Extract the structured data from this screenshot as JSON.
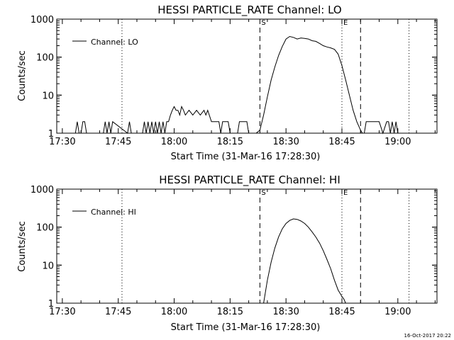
{
  "footer_timestamp": "16-Oct-2017 20:22",
  "chart_data": [
    {
      "type": "line",
      "title": "HESSI PARTICLE_RATE Channel: LO",
      "xlabel": "Start Time (31-Mar-16 17:28:30)",
      "ylabel": "Counts/sec",
      "y_scale": "log",
      "ylim": [
        1,
        1000
      ],
      "xlim": [
        "17:28:30",
        "19:10:30"
      ],
      "x_ticks": [
        "17:30",
        "17:45",
        "18:00",
        "18:15",
        "18:30",
        "18:45",
        "19:00"
      ],
      "y_ticks": [
        "1",
        "10",
        "100",
        "1000"
      ],
      "legend": {
        "label": "Channel: LO",
        "position": "top-left"
      },
      "markers": [
        {
          "time": "17:46",
          "style": "dotted",
          "label": ""
        },
        {
          "time": "18:23",
          "style": "dashed",
          "label": "S"
        },
        {
          "time": "18:45",
          "style": "dotted",
          "label": "E"
        },
        {
          "time": "18:50",
          "style": "dashed",
          "label": ""
        },
        {
          "time": "19:03",
          "style": "dotted",
          "label": ""
        }
      ],
      "series": [
        {
          "x": [
            "17:28:30",
            "17:33:30",
            "17:34:00",
            "17:34:30",
            "17:35:00",
            "17:35:30",
            "17:36:00",
            "17:36:30",
            "17:41:00",
            "17:41:30",
            "17:42:00",
            "17:42:30",
            "17:43:00",
            "17:43:30",
            "17:47:30",
            "17:48:00",
            "17:48:30",
            "17:51:30",
            "17:52:00",
            "17:52:30",
            "17:53:00",
            "17:53:30",
            "17:54:00",
            "17:54:30",
            "17:55:00",
            "17:55:30",
            "17:56:00",
            "17:56:30",
            "17:57:00",
            "17:57:30",
            "17:58:00",
            "17:58:30",
            "17:59:00",
            "17:59:30",
            "18:00:00",
            "18:00:30",
            "18:01:00",
            "18:01:30",
            "18:02:00",
            "18:02:30",
            "18:03:00",
            "18:04:00",
            "18:05:00",
            "18:06:00",
            "18:07:00",
            "18:08:00",
            "18:08:30",
            "18:09:00",
            "18:10:00",
            "18:11:00",
            "18:12:00",
            "18:12:30",
            "18:13:00",
            "18:14:00",
            "18:14:30",
            "18:15:00",
            "18:17:00",
            "18:17:30",
            "18:18:00",
            "18:18:30",
            "18:19:00",
            "18:19:30",
            "18:20:00",
            "18:21:00",
            "18:22:00",
            "18:23:00",
            "18:24:00",
            "18:25:00",
            "18:26:00",
            "18:27:00",
            "18:28:00",
            "18:29:00",
            "18:30:00",
            "18:31:00",
            "18:32:00",
            "18:33:00",
            "18:34:00",
            "18:35:00",
            "18:36:00",
            "18:37:00",
            "18:38:00",
            "18:39:00",
            "18:40:00",
            "18:41:00",
            "18:42:00",
            "18:43:00",
            "18:44:00",
            "18:45:00",
            "18:46:00",
            "18:47:00",
            "18:48:00",
            "18:49:00",
            "18:50:00",
            "18:50:30",
            "18:51:00",
            "18:51:30",
            "18:52:00",
            "18:53:00",
            "18:54:00",
            "18:55:00",
            "18:56:00",
            "18:57:00",
            "18:57:30",
            "18:58:00",
            "18:58:30",
            "18:59:00",
            "18:59:30",
            "19:00:00",
            "19:00:30",
            "19:10:30"
          ],
          "y": [
            1,
            1,
            2,
            1,
            1,
            2,
            2,
            1,
            1,
            2,
            1,
            2,
            1,
            2,
            1,
            2,
            1,
            1,
            2,
            1,
            2,
            1,
            2,
            1,
            2,
            1,
            2,
            1,
            2,
            1,
            2,
            2,
            3,
            4,
            5,
            4,
            4,
            3,
            5,
            4,
            3,
            4,
            3,
            4,
            3,
            4,
            3,
            4,
            2,
            2,
            2,
            1,
            2,
            2,
            2,
            1,
            1,
            2,
            2,
            2,
            2,
            2,
            1,
            1,
            1,
            1.2,
            3,
            9,
            25,
            55,
            110,
            190,
            300,
            350,
            330,
            300,
            320,
            310,
            300,
            270,
            260,
            230,
            200,
            185,
            175,
            160,
            120,
            60,
            25,
            10,
            4,
            2,
            1.2,
            1,
            1,
            2,
            2,
            2,
            2,
            2,
            1,
            2,
            2,
            1,
            2,
            1,
            2,
            1,
            1,
            1
          ]
        }
      ]
    },
    {
      "type": "line",
      "title": "HESSI PARTICLE_RATE Channel: HI",
      "xlabel": "Start Time (31-Mar-16 17:28:30)",
      "ylabel": "Counts/sec",
      "y_scale": "log",
      "ylim": [
        1,
        1000
      ],
      "xlim": [
        "17:28:30",
        "19:10:30"
      ],
      "x_ticks": [
        "17:30",
        "17:45",
        "18:00",
        "18:15",
        "18:30",
        "18:45",
        "19:00"
      ],
      "y_ticks": [
        "1",
        "10",
        "100",
        "1000"
      ],
      "legend": {
        "label": "Channel: HI",
        "position": "top-left"
      },
      "markers": [
        {
          "time": "17:46",
          "style": "dotted",
          "label": ""
        },
        {
          "time": "18:23",
          "style": "dashed",
          "label": "S"
        },
        {
          "time": "18:45",
          "style": "dotted",
          "label": "E"
        },
        {
          "time": "18:50",
          "style": "dashed",
          "label": ""
        },
        {
          "time": "19:03",
          "style": "dotted",
          "label": ""
        }
      ],
      "series": [
        {
          "x": [
            "18:24:00",
            "18:25:00",
            "18:26:00",
            "18:27:00",
            "18:28:00",
            "18:29:00",
            "18:30:00",
            "18:31:00",
            "18:32:00",
            "18:33:00",
            "18:34:00",
            "18:35:00",
            "18:36:00",
            "18:37:00",
            "18:38:00",
            "18:39:00",
            "18:40:00",
            "18:41:00",
            "18:42:00",
            "18:43:00",
            "18:44:00",
            "18:45:00",
            "18:45:30",
            "18:46:00"
          ],
          "y": [
            1,
            4,
            12,
            28,
            55,
            90,
            125,
            150,
            165,
            160,
            145,
            125,
            100,
            75,
            55,
            38,
            24,
            14,
            8,
            4,
            2.2,
            1.5,
            1.3,
            1
          ]
        }
      ]
    }
  ]
}
